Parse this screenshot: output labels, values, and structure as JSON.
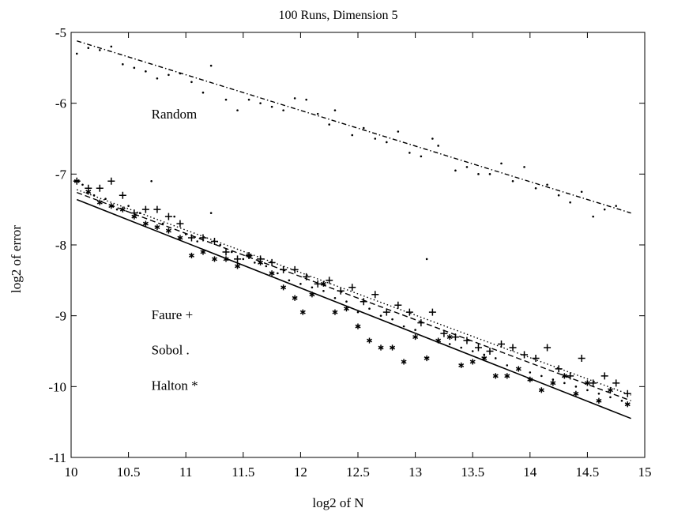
{
  "chart_data": {
    "type": "scatter",
    "title": "100 Runs, Dimension 5",
    "xlabel": "log2 of N",
    "ylabel": "log2 of error",
    "xlim": [
      10,
      15
    ],
    "ylim": [
      -11,
      -5
    ],
    "x_ticks": [
      10,
      10.5,
      11,
      11.5,
      12,
      12.5,
      13,
      13.5,
      14,
      14.5,
      15
    ],
    "x_tick_labels": [
      "10",
      "10.5",
      "11",
      "11.5",
      "12",
      "12.5",
      "13",
      "13.5",
      "14",
      "14.5",
      "15"
    ],
    "y_ticks": [
      -11,
      -10,
      -9,
      -8,
      -7,
      -6,
      -5
    ],
    "y_tick_labels": [
      "-11",
      "-10",
      "-9",
      "-8",
      "-7",
      "-6",
      "-5"
    ],
    "grid": false,
    "legend": "none",
    "annotations": [
      {
        "text": "Random",
        "x": 10.7,
        "y": -6.15
      },
      {
        "text": "Faure +",
        "x": 10.7,
        "y": -8.98
      },
      {
        "text": "Sobol .",
        "x": 10.7,
        "y": -9.48
      },
      {
        "text": "Halton *",
        "x": 10.7,
        "y": -9.98
      }
    ],
    "series": [
      {
        "marker": "dot",
        "fit_line": {
          "style": "dash-dot",
          "x": [
            10.05,
            14.88
          ],
          "y": [
            -5.12,
            -7.55
          ]
        },
        "x": [
          10.05,
          10.15,
          10.25,
          10.35,
          10.45,
          10.55,
          10.65,
          10.75,
          10.85,
          10.95,
          11.05,
          11.15,
          11.22,
          11.35,
          11.45,
          11.55,
          11.65,
          11.75,
          11.85,
          11.95,
          12.05,
          12.15,
          12.25,
          12.3,
          12.45,
          12.55,
          12.65,
          12.75,
          12.85,
          12.95,
          13.05,
          13.15,
          13.2,
          13.35,
          13.45,
          13.55,
          13.65,
          13.75,
          13.85,
          13.95,
          14.05,
          14.15,
          14.25,
          14.35,
          14.45,
          14.55,
          14.65,
          14.75
        ],
        "y": [
          -5.3,
          -5.22,
          -5.25,
          -5.2,
          -5.45,
          -5.5,
          -5.55,
          -5.65,
          -5.6,
          -5.58,
          -5.7,
          -5.85,
          -5.47,
          -5.95,
          -6.1,
          -5.95,
          -6.0,
          -6.05,
          -6.1,
          -5.93,
          -5.95,
          -6.15,
          -6.3,
          -6.1,
          -6.45,
          -6.35,
          -6.5,
          -6.55,
          -6.4,
          -6.7,
          -6.75,
          -6.5,
          -6.6,
          -6.95,
          -6.9,
          -7.0,
          -7.0,
          -6.85,
          -7.1,
          -6.9,
          -7.2,
          -7.15,
          -7.3,
          -7.4,
          -7.25,
          -7.6,
          -7.5,
          -7.45
        ]
      },
      {
        "marker": "plus",
        "fit_line": {
          "style": "dotted",
          "x": [
            10.05,
            14.88
          ],
          "y": [
            -7.22,
            -10.12
          ]
        },
        "x": [
          10.05,
          10.15,
          10.25,
          10.35,
          10.45,
          10.55,
          10.65,
          10.75,
          10.85,
          10.95,
          11.05,
          11.15,
          11.25,
          11.35,
          11.45,
          11.55,
          11.65,
          11.75,
          11.85,
          11.95,
          12.05,
          12.15,
          12.25,
          12.35,
          12.45,
          12.55,
          12.65,
          12.75,
          12.85,
          12.95,
          13.05,
          13.15,
          13.25,
          13.35,
          13.45,
          13.55,
          13.65,
          13.75,
          13.85,
          13.95,
          14.05,
          14.15,
          14.25,
          14.35,
          14.45,
          14.55,
          14.65,
          14.75,
          14.85
        ],
        "y": [
          -7.1,
          -7.2,
          -7.2,
          -7.1,
          -7.3,
          -7.55,
          -7.5,
          -7.5,
          -7.6,
          -7.7,
          -7.9,
          -7.9,
          -7.95,
          -8.1,
          -8.2,
          -8.15,
          -8.2,
          -8.25,
          -8.35,
          -8.35,
          -8.45,
          -8.55,
          -8.5,
          -8.65,
          -8.6,
          -8.8,
          -8.7,
          -8.95,
          -8.85,
          -8.95,
          -9.1,
          -8.95,
          -9.25,
          -9.3,
          -9.35,
          -9.45,
          -9.5,
          -9.4,
          -9.45,
          -9.55,
          -9.6,
          -9.45,
          -9.75,
          -9.85,
          -9.6,
          -9.95,
          -9.85,
          -9.95,
          -10.1
        ]
      },
      {
        "marker": "dot",
        "fit_line": {
          "style": "dashed",
          "x": [
            10.05,
            14.88
          ],
          "y": [
            -7.26,
            -10.2
          ]
        },
        "x": [
          10.1,
          10.2,
          10.3,
          10.4,
          10.5,
          10.6,
          10.7,
          10.8,
          10.9,
          11.0,
          11.1,
          11.22,
          11.3,
          11.4,
          11.5,
          11.6,
          11.7,
          11.8,
          11.9,
          12.0,
          12.1,
          12.2,
          12.3,
          12.4,
          12.5,
          12.6,
          12.7,
          12.8,
          12.9,
          13.0,
          13.1,
          13.2,
          13.3,
          13.4,
          13.5,
          13.6,
          13.7,
          13.8,
          13.9,
          14.0,
          14.1,
          14.2,
          14.3,
          14.4,
          14.5,
          14.6,
          14.7,
          14.8
        ],
        "y": [
          -7.15,
          -7.3,
          -7.35,
          -7.5,
          -7.45,
          -7.55,
          -7.1,
          -7.7,
          -7.6,
          -7.85,
          -7.95,
          -7.55,
          -8.0,
          -8.1,
          -8.2,
          -8.25,
          -8.3,
          -8.4,
          -8.5,
          -8.55,
          -8.6,
          -8.65,
          -8.75,
          -8.8,
          -8.95,
          -8.9,
          -9.0,
          -9.05,
          -9.15,
          -9.2,
          -8.2,
          -9.35,
          -9.4,
          -9.45,
          -9.5,
          -9.55,
          -9.6,
          -9.7,
          -9.75,
          -9.8,
          -9.85,
          -9.9,
          -9.95,
          -10.0,
          -10.05,
          -10.1,
          -10.15,
          -10.2
        ]
      },
      {
        "marker": "asterisk",
        "fit_line": {
          "style": "solid",
          "x": [
            10.05,
            14.88
          ],
          "y": [
            -7.36,
            -10.45
          ]
        },
        "x": [
          10.05,
          10.15,
          10.25,
          10.35,
          10.45,
          10.55,
          10.65,
          10.75,
          10.85,
          10.95,
          11.05,
          11.15,
          11.25,
          11.35,
          11.45,
          11.55,
          11.65,
          11.75,
          11.85,
          11.95,
          12.02,
          12.1,
          12.2,
          12.3,
          12.4,
          12.5,
          12.6,
          12.7,
          12.8,
          12.9,
          13.0,
          13.1,
          13.2,
          13.3,
          13.4,
          13.5,
          13.6,
          13.7,
          13.8,
          13.9,
          14.0,
          14.1,
          14.2,
          14.3,
          14.4,
          14.5,
          14.6,
          14.7,
          14.85
        ],
        "y": [
          -7.1,
          -7.25,
          -7.4,
          -7.45,
          -7.5,
          -7.6,
          -7.7,
          -7.75,
          -7.8,
          -7.9,
          -8.15,
          -8.1,
          -8.2,
          -8.2,
          -8.3,
          -8.15,
          -8.25,
          -8.4,
          -8.6,
          -8.75,
          -8.95,
          -8.7,
          -8.55,
          -8.95,
          -8.9,
          -9.15,
          -9.35,
          -9.45,
          -9.45,
          -9.65,
          -9.3,
          -9.6,
          -9.35,
          -9.3,
          -9.7,
          -9.65,
          -9.6,
          -9.85,
          -9.85,
          -9.75,
          -9.9,
          -10.05,
          -9.95,
          -9.85,
          -10.1,
          -9.95,
          -10.2,
          -10.05,
          -10.25
        ]
      }
    ]
  }
}
